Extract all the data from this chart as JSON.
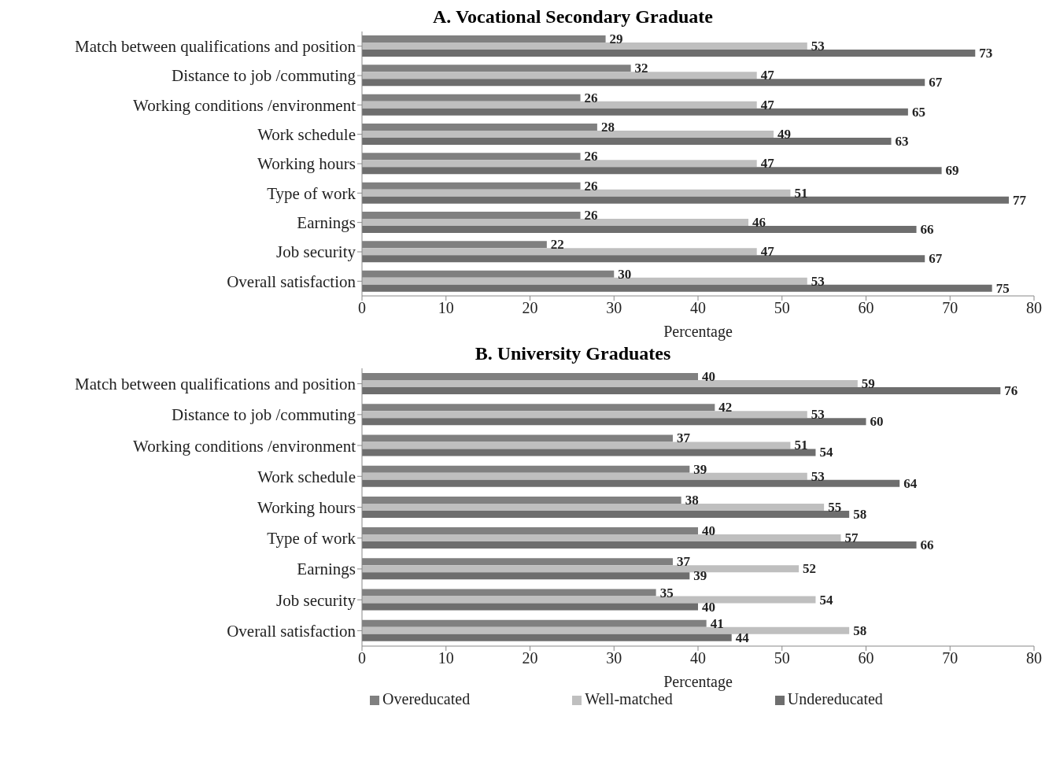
{
  "chart_data": [
    {
      "type": "bar",
      "orientation": "horizontal",
      "title": "A. Vocational Secondary Graduate",
      "xlabel": "Percentage",
      "categories": [
        "Match between qualifications and position",
        "Distance to job /commuting",
        "Working conditions /environment",
        "Work schedule",
        "Working hours",
        "Type of work",
        "Earnings",
        "Job security",
        "Overall satisfaction"
      ],
      "series": [
        {
          "color": "#808080",
          "values": [
            29,
            32,
            26,
            28,
            26,
            26,
            26,
            22,
            30
          ]
        },
        {
          "color": "#bfbfbf",
          "values": [
            53,
            47,
            47,
            49,
            47,
            51,
            46,
            47,
            53
          ]
        },
        {
          "color": "#6e6e6e",
          "values": [
            73,
            67,
            65,
            63,
            69,
            77,
            66,
            67,
            75
          ]
        }
      ],
      "xlim": [
        0,
        80
      ],
      "xticks": [
        0,
        10,
        20,
        30,
        40,
        50,
        60,
        70,
        80
      ],
      "data_labels": true
    },
    {
      "type": "bar",
      "orientation": "horizontal",
      "title": "B. University Graduates",
      "xlabel": "Percentage",
      "categories": [
        "Match between qualifications and position",
        "Distance to job /commuting",
        "Working conditions /environment",
        "Work schedule",
        "Working hours",
        "Type of work",
        "Earnings",
        "Job security",
        "Overall satisfaction"
      ],
      "series": [
        {
          "name": "Overeducated",
          "color": "#808080",
          "values": [
            40,
            42,
            37,
            39,
            38,
            40,
            37,
            35,
            41
          ]
        },
        {
          "name": "Well-matched",
          "color": "#bfbfbf",
          "values": [
            59,
            53,
            51,
            53,
            55,
            57,
            52,
            54,
            58
          ]
        },
        {
          "name": "Undereducated",
          "color": "#6e6e6e",
          "values": [
            76,
            60,
            54,
            64,
            58,
            66,
            39,
            40,
            44
          ]
        }
      ],
      "xlim": [
        0,
        80
      ],
      "xticks": [
        0,
        10,
        20,
        30,
        40,
        50,
        60,
        70,
        80
      ],
      "data_labels": true,
      "legend": "bottom"
    }
  ]
}
